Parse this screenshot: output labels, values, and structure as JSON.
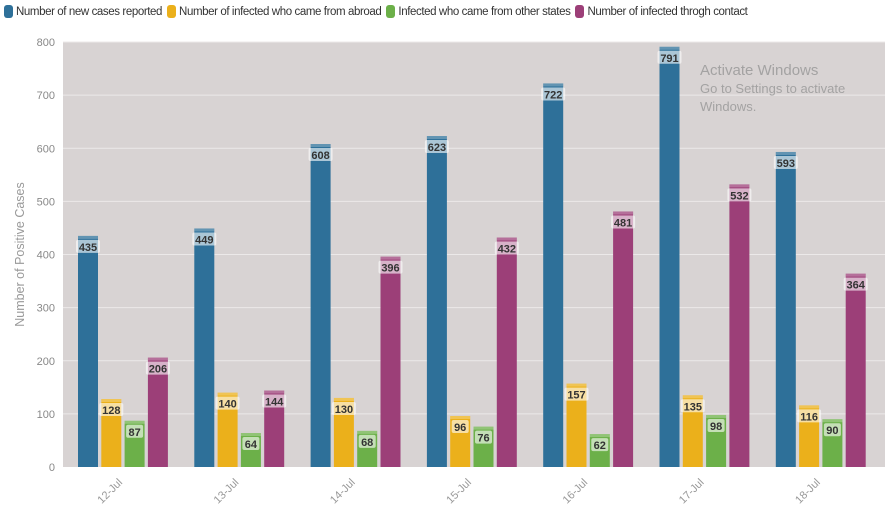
{
  "chart_data": {
    "type": "bar",
    "ylabel": "Number of Positive Cases",
    "ylim": [
      0,
      800
    ],
    "yticks": [
      0,
      100,
      200,
      300,
      400,
      500,
      600,
      700,
      800
    ],
    "grid": true,
    "legend_position": "top",
    "categories": [
      "12-Jul",
      "13-Jul",
      "14-Jul",
      "15-Jul",
      "16-Jul",
      "17-Jul",
      "18-Jul"
    ],
    "series": [
      {
        "name": "Number of new cases reported",
        "color": "#2e7099",
        "values": [
          435,
          449,
          608,
          623,
          722,
          791,
          593
        ]
      },
      {
        "name": "Number of infected who came from abroad",
        "color": "#ebb01b",
        "values": [
          128,
          140,
          130,
          96,
          157,
          135,
          116
        ]
      },
      {
        "name": "Infected who came from other states",
        "color": "#6cb049",
        "values": [
          87,
          64,
          68,
          76,
          62,
          98,
          90
        ]
      },
      {
        "name": "Number of infected throgh contact",
        "color": "#9c3f78",
        "values": [
          206,
          144,
          396,
          432,
          481,
          532,
          364
        ]
      }
    ]
  },
  "watermark": {
    "line1": "Activate Windows",
    "line2": "Go to Settings to activate Windows."
  }
}
